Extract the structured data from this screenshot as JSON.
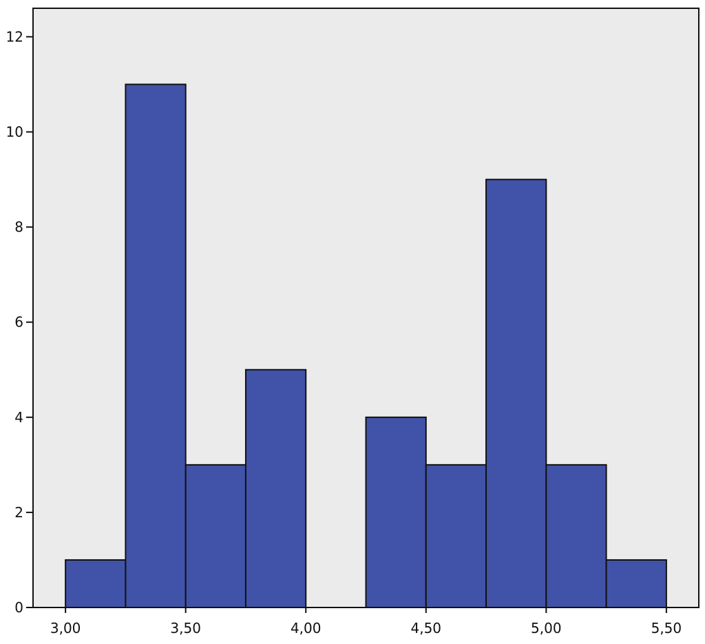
{
  "chart_data": {
    "type": "bar",
    "subtype": "histogram",
    "bins": [
      {
        "start": 3.0,
        "end": 3.25,
        "count": 1
      },
      {
        "start": 3.25,
        "end": 3.5,
        "count": 11
      },
      {
        "start": 3.5,
        "end": 3.75,
        "count": 3
      },
      {
        "start": 3.75,
        "end": 4.0,
        "count": 5
      },
      {
        "start": 4.0,
        "end": 4.25,
        "count": 0
      },
      {
        "start": 4.25,
        "end": 4.5,
        "count": 4
      },
      {
        "start": 4.5,
        "end": 4.75,
        "count": 3
      },
      {
        "start": 4.75,
        "end": 5.0,
        "count": 9
      },
      {
        "start": 5.0,
        "end": 5.25,
        "count": 3
      },
      {
        "start": 5.25,
        "end": 5.5,
        "count": 1
      }
    ],
    "xticks": [
      {
        "value": 3.0,
        "label": "3,00"
      },
      {
        "value": 3.5,
        "label": "3,50"
      },
      {
        "value": 4.0,
        "label": "4,00"
      },
      {
        "value": 4.5,
        "label": "4,50"
      },
      {
        "value": 5.0,
        "label": "5,00"
      },
      {
        "value": 5.5,
        "label": "5,50"
      }
    ],
    "yticks": [
      {
        "value": 0,
        "label": "0"
      },
      {
        "value": 2,
        "label": "2"
      },
      {
        "value": 4,
        "label": "4"
      },
      {
        "value": 6,
        "label": "6"
      },
      {
        "value": 8,
        "label": "8"
      },
      {
        "value": 10,
        "label": "10"
      },
      {
        "value": 12,
        "label": "12"
      }
    ],
    "xlim": [
      2.865,
      5.635
    ],
    "ylim": [
      0,
      12.6
    ],
    "grid": false,
    "colors": {
      "bar_fill": "#4153a8",
      "bar_stroke": "#111111",
      "plot_background": "#ebebeb",
      "axis": "#111111"
    }
  }
}
